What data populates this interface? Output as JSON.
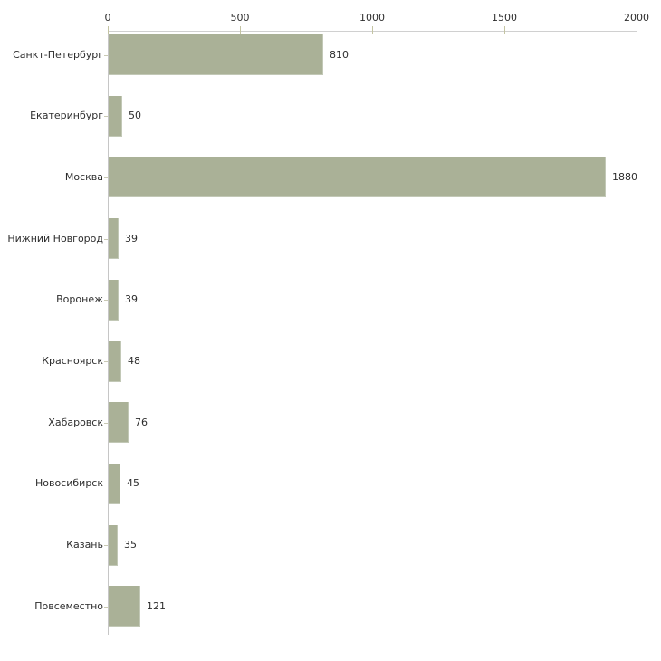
{
  "chart_data": {
    "type": "bar",
    "orientation": "horizontal",
    "title": "",
    "xlabel": "",
    "ylabel": "",
    "categories": [
      "Санкт-Петербург",
      "Екатеринбург",
      "Москва",
      "Нижний Новгород",
      "Воронеж",
      "Красноярск",
      "Хабаровск",
      "Новосибирск",
      "Казань",
      "Повсеместно"
    ],
    "values": [
      810,
      50,
      1880,
      39,
      39,
      48,
      76,
      45,
      35,
      121
    ],
    "value_labels": [
      "810",
      "50",
      "1880",
      "39",
      "39",
      "48",
      "76",
      "45",
      "35",
      "121"
    ],
    "xlim": [
      0,
      2000
    ],
    "x_ticks": [
      0,
      500,
      1000,
      1500,
      2000
    ],
    "x_tick_labels": [
      "0",
      "500",
      "1000",
      "1500",
      "2000"
    ],
    "grid": false,
    "legend": null,
    "axis_position": "top",
    "colors": {
      "bar_fill": "#aab197",
      "bar_border": "#c2c8b6",
      "axis_line": "#d0d0d0",
      "y_axis_line": "#c6c6c6",
      "tick_mark": "#c4c4a2",
      "y_tick_mark": "#c9c9b4",
      "text": "#2d2d2d",
      "background": "#ffffff"
    }
  }
}
